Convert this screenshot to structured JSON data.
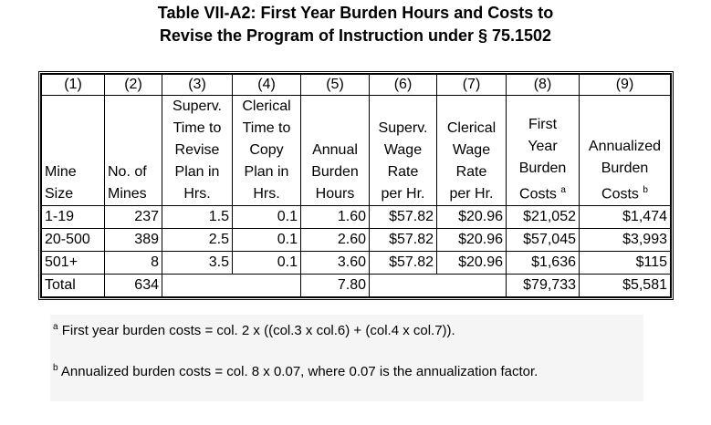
{
  "title": [
    "Table VII-A2:  First Year Burden Hours and Costs to",
    "Revise the Program of Instruction under § 75.1502"
  ],
  "table": {
    "column_numbers": [
      "(1)",
      "(2)",
      "(3)",
      "(4)",
      "(5)",
      "(6)",
      "(7)",
      "(8)",
      "(9)"
    ],
    "headers": [
      {
        "lines": [
          "Mine",
          "Size"
        ]
      },
      {
        "lines": [
          "No. of",
          "Mines"
        ]
      },
      {
        "lines": [
          "Superv.",
          "Time to",
          "Revise",
          "Plan in",
          "Hrs."
        ]
      },
      {
        "lines": [
          "Clerical",
          "Time to",
          "Copy",
          "Plan in",
          "Hrs."
        ]
      },
      {
        "lines": [
          "Annual",
          "Burden",
          "Hours"
        ]
      },
      {
        "lines": [
          "Superv.",
          "Wage",
          "Rate",
          "per Hr."
        ]
      },
      {
        "lines": [
          "Clerical",
          "Wage",
          "Rate",
          "per Hr."
        ]
      },
      {
        "lines": [
          "First",
          "Year",
          "Burden",
          "Costs"
        ],
        "note": "a"
      },
      {
        "lines": [
          "Annualized",
          "Burden",
          "Costs"
        ],
        "note": "b"
      }
    ],
    "rows": [
      [
        "1-19",
        "237",
        "1.5",
        "0.1",
        "1.60",
        "$57.82",
        "$20.96",
        "$21,052",
        "$1,474"
      ],
      [
        "20-500",
        "389",
        "2.5",
        "0.1",
        "2.60",
        "$57.82",
        "$20.96",
        "$57,045",
        "$3,993"
      ],
      [
        "501+",
        "8",
        "3.5",
        "0.1",
        "3.60",
        "$57.82",
        "$20.96",
        "$1,636",
        "$115"
      ],
      [
        "Total",
        "634",
        null,
        null,
        "7.80",
        null,
        null,
        "$79,733",
        "$5,581"
      ]
    ]
  },
  "footnotes": [
    {
      "mark": "a",
      "text": "First year burden costs = col. 2 x ((col.3 x col.6) + (col.4 x col.7))."
    },
    {
      "mark": "b",
      "text": "Annualized burden costs = col. 8 x 0.07, where 0.07 is the annualization factor."
    }
  ]
}
